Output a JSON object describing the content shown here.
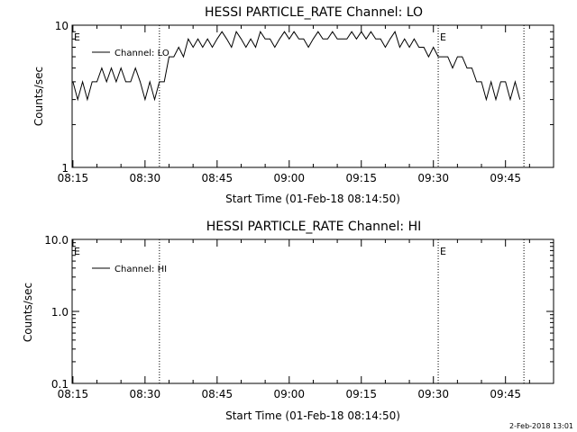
{
  "stamp": "2-Feb-2018 13:01",
  "chart_data": [
    {
      "type": "line",
      "title": "HESSI PARTICLE_RATE Channel: LO",
      "xlabel": "Start Time (01-Feb-18 08:14:50)",
      "ylabel": "Counts/sec",
      "y_scale": "log",
      "ylim": [
        1,
        10
      ],
      "yticks": [
        {
          "value": 1,
          "label": "1"
        },
        {
          "value": 10,
          "label": "10"
        }
      ],
      "xlim": [
        "08:14:50",
        "09:55:00"
      ],
      "xticks": [
        {
          "value": "08:15",
          "label": "08:15"
        },
        {
          "value": "08:30",
          "label": "08:30"
        },
        {
          "value": "08:45",
          "label": "08:45"
        },
        {
          "value": "09:00",
          "label": "09:00"
        },
        {
          "value": "09:15",
          "label": "09:15"
        },
        {
          "value": "09:30",
          "label": "09:30"
        },
        {
          "value": "09:45",
          "label": "09:45"
        }
      ],
      "markers": [
        {
          "time": "08:14:50",
          "label": "E"
        },
        {
          "time": "08:33:00",
          "label": ""
        },
        {
          "time": "09:31:00",
          "label": "E"
        },
        {
          "time": "09:48:50",
          "label": ""
        }
      ],
      "legend": "top-left",
      "series": [
        {
          "name": "Channel: LO",
          "x": [
            "08:15",
            "08:16",
            "08:17",
            "08:18",
            "08:19",
            "08:20",
            "08:21",
            "08:22",
            "08:23",
            "08:24",
            "08:25",
            "08:26",
            "08:27",
            "08:28",
            "08:29",
            "08:30",
            "08:31",
            "08:32",
            "08:33",
            "08:34",
            "08:35",
            "08:36",
            "08:37",
            "08:38",
            "08:39",
            "08:40",
            "08:41",
            "08:42",
            "08:43",
            "08:44",
            "08:45",
            "08:46",
            "08:47",
            "08:48",
            "08:49",
            "08:50",
            "08:51",
            "08:52",
            "08:53",
            "08:54",
            "08:55",
            "08:56",
            "08:57",
            "08:58",
            "08:59",
            "09:00",
            "09:01",
            "09:02",
            "09:03",
            "09:04",
            "09:05",
            "09:06",
            "09:07",
            "09:08",
            "09:09",
            "09:10",
            "09:11",
            "09:12",
            "09:13",
            "09:14",
            "09:15",
            "09:16",
            "09:17",
            "09:18",
            "09:19",
            "09:20",
            "09:21",
            "09:22",
            "09:23",
            "09:24",
            "09:25",
            "09:26",
            "09:27",
            "09:28",
            "09:29",
            "09:30",
            "09:31",
            "09:32",
            "09:33",
            "09:34",
            "09:35",
            "09:36",
            "09:37",
            "09:38",
            "09:39",
            "09:40",
            "09:41",
            "09:42",
            "09:43",
            "09:44",
            "09:45",
            "09:46",
            "09:47",
            "09:48"
          ],
          "y": [
            4,
            3,
            4,
            3,
            4,
            4,
            5,
            4,
            5,
            4,
            5,
            4,
            4,
            5,
            4,
            3,
            4,
            3,
            4,
            4,
            6,
            6,
            7,
            6,
            8,
            7,
            8,
            7,
            8,
            7,
            8,
            9,
            8,
            7,
            9,
            8,
            7,
            8,
            7,
            9,
            8,
            8,
            7,
            8,
            9,
            8,
            9,
            8,
            8,
            7,
            8,
            9,
            8,
            8,
            9,
            8,
            8,
            8,
            9,
            8,
            9,
            8,
            9,
            8,
            8,
            7,
            8,
            9,
            7,
            8,
            7,
            8,
            7,
            7,
            6,
            7,
            6,
            6,
            6,
            5,
            6,
            6,
            5,
            5,
            4,
            4,
            3,
            4,
            3,
            4,
            4,
            3,
            4,
            3
          ]
        }
      ]
    },
    {
      "type": "line",
      "title": "HESSI PARTICLE_RATE Channel: HI",
      "xlabel": "Start Time (01-Feb-18 08:14:50)",
      "ylabel": "Counts/sec",
      "y_scale": "log",
      "ylim": [
        0.1,
        10
      ],
      "yticks": [
        {
          "value": 0.1,
          "label": "0.1"
        },
        {
          "value": 1,
          "label": "1.0"
        },
        {
          "value": 10,
          "label": "10.0"
        }
      ],
      "xlim": [
        "08:14:50",
        "09:55:00"
      ],
      "xticks": [
        {
          "value": "08:15",
          "label": "08:15"
        },
        {
          "value": "08:30",
          "label": "08:30"
        },
        {
          "value": "08:45",
          "label": "08:45"
        },
        {
          "value": "09:00",
          "label": "09:00"
        },
        {
          "value": "09:15",
          "label": "09:15"
        },
        {
          "value": "09:30",
          "label": "09:30"
        },
        {
          "value": "09:45",
          "label": "09:45"
        }
      ],
      "markers": [
        {
          "time": "08:14:50",
          "label": "E"
        },
        {
          "time": "08:33:00",
          "label": ""
        },
        {
          "time": "09:31:00",
          "label": "E"
        },
        {
          "time": "09:48:50",
          "label": ""
        }
      ],
      "legend": "top-left",
      "series": [
        {
          "name": "Channel: HI",
          "x": [],
          "y": []
        }
      ]
    }
  ]
}
